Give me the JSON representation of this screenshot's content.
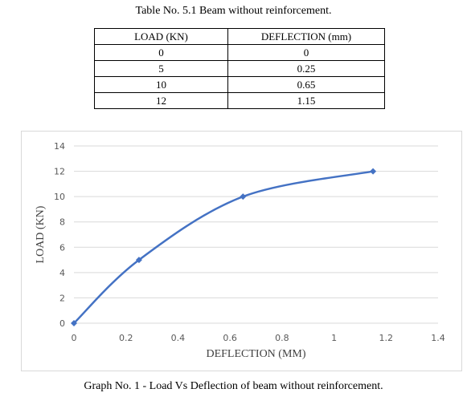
{
  "table": {
    "title": "Table No. 5.1 Beam without reinforcement.",
    "headers": [
      "LOAD (KN)",
      "DEFLECTION (mm)"
    ],
    "rows": [
      [
        "0",
        "0"
      ],
      [
        "5",
        "0.25"
      ],
      [
        "10",
        "0.65"
      ],
      [
        "12",
        "1.15"
      ]
    ]
  },
  "caption": "Graph No. 1 - Load Vs Deflection of beam without reinforcement.",
  "chart_data": {
    "type": "scatter",
    "title": "",
    "xlabel": "DEFLECTION (MM)",
    "ylabel": "LOAD (KN)",
    "xlim": [
      0,
      1.4
    ],
    "ylim": [
      0,
      14
    ],
    "x_ticks": [
      "0",
      "0.2",
      "0.4",
      "0.6",
      "0.8",
      "1",
      "1.2",
      "1.4"
    ],
    "y_ticks": [
      "0",
      "2",
      "4",
      "6",
      "8",
      "10",
      "12",
      "14"
    ],
    "grid": true,
    "smooth": true,
    "series": [
      {
        "x": [
          0,
          0.25,
          0.65,
          1.15
        ],
        "y": [
          0,
          5,
          10,
          12
        ]
      }
    ],
    "colors": {
      "line": "#4472c4",
      "grid": "#d9d9d9"
    }
  }
}
